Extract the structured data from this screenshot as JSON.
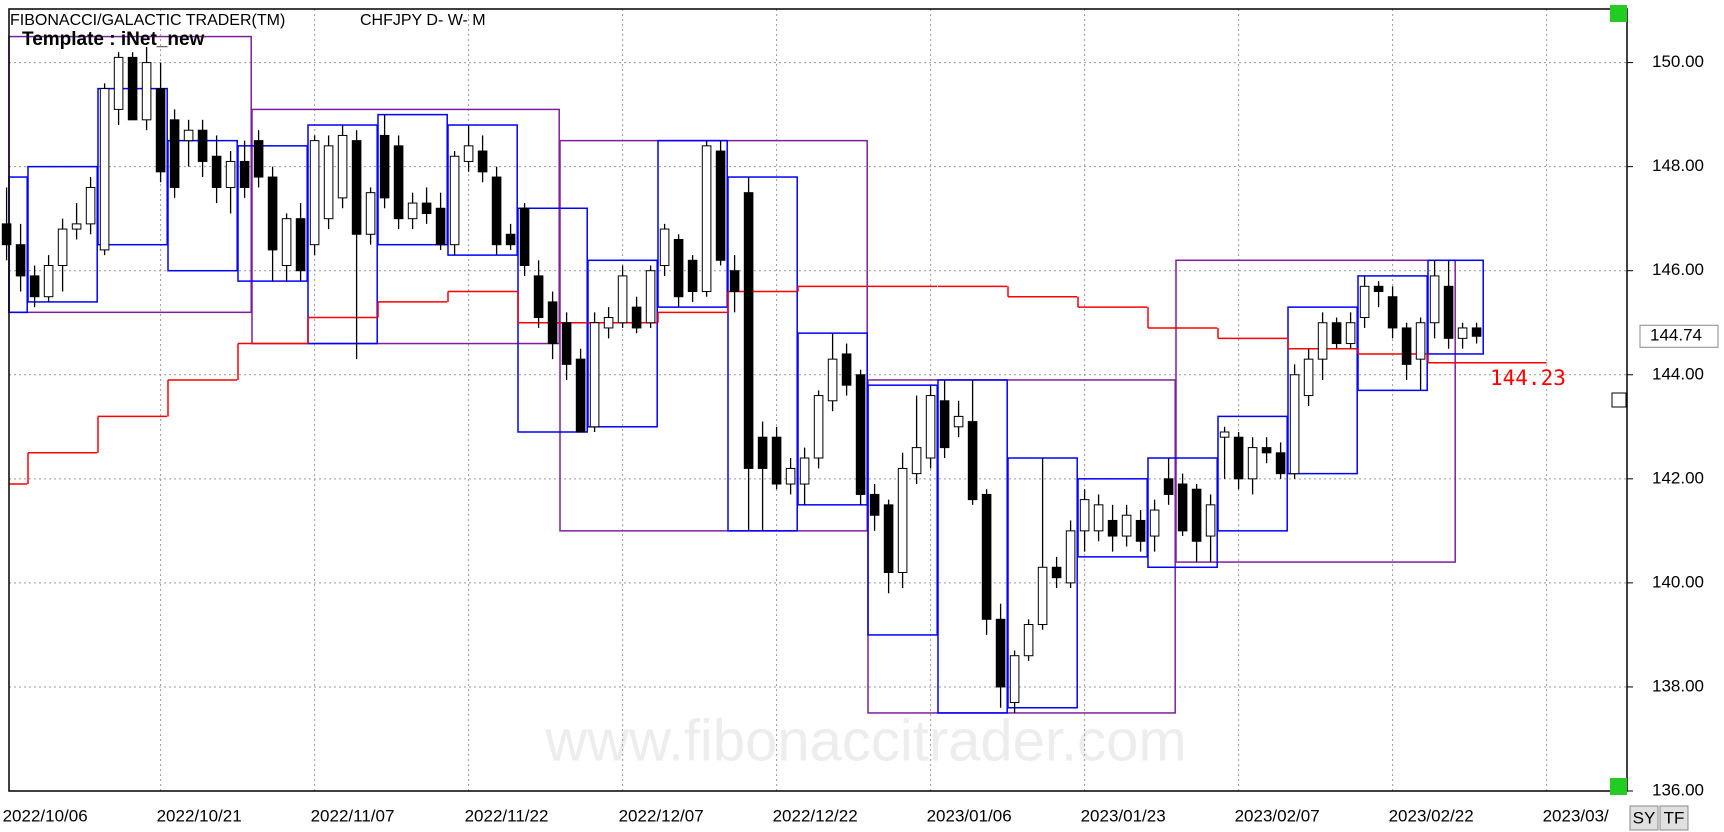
{
  "chart_data": {
    "type": "candlestick",
    "title": "FIBONACCI/GALACTIC TRADER(TM)",
    "subtitle": "CHFJPY D- W- M",
    "template": "Template : iNet_new",
    "watermark": "www.fibonaccitrader.com",
    "buttons": [
      "SY",
      "TF"
    ],
    "categories": [
      "2022/10/06",
      null,
      null,
      null,
      null,
      null,
      null,
      null,
      null,
      null,
      null,
      "2022/10/21",
      null,
      null,
      null,
      null,
      null,
      null,
      null,
      null,
      null,
      null,
      "2022/11/07",
      null,
      null,
      null,
      null,
      null,
      null,
      null,
      null,
      null,
      null,
      "2022/11/22",
      null,
      null,
      null,
      null,
      null,
      null,
      null,
      null,
      null,
      null,
      "2022/12/07",
      null,
      null,
      null,
      null,
      null,
      null,
      null,
      null,
      null,
      null,
      "2022/12/22",
      null,
      null,
      null,
      null,
      null,
      null,
      null,
      null,
      null,
      null,
      "2023/01/06",
      null,
      null,
      null,
      null,
      null,
      null,
      null,
      null,
      null,
      null,
      "2023/01/23",
      null,
      null,
      null,
      null,
      null,
      null,
      null,
      null,
      null,
      null,
      "2023/02/07",
      null,
      null,
      null,
      null,
      null,
      null,
      null,
      null,
      null,
      null,
      "2023/02/22",
      null,
      null,
      null,
      null,
      null,
      null,
      null,
      null,
      null,
      null,
      "2023/03/"
    ],
    "candles": [
      [
        146.9,
        147.6,
        146.2,
        146.5
      ],
      [
        146.5,
        146.9,
        145.6,
        145.9
      ],
      [
        145.9,
        146.1,
        145.3,
        145.5
      ],
      [
        145.5,
        146.3,
        145.4,
        146.1
      ],
      [
        146.1,
        147.0,
        145.6,
        146.8
      ],
      [
        146.8,
        147.3,
        146.6,
        146.9
      ],
      [
        146.9,
        147.8,
        146.7,
        147.6
      ],
      [
        146.4,
        149.6,
        146.3,
        149.5
      ],
      [
        149.1,
        150.2,
        148.8,
        150.1
      ],
      [
        150.1,
        150.2,
        148.9,
        148.9
      ],
      [
        148.9,
        150.3,
        148.7,
        150.0
      ],
      [
        149.5,
        150.0,
        147.7,
        147.9
      ],
      [
        148.9,
        149.1,
        147.4,
        147.6
      ],
      [
        148.5,
        148.9,
        148.0,
        148.7
      ],
      [
        148.7,
        148.9,
        147.8,
        148.1
      ],
      [
        148.2,
        148.6,
        147.3,
        147.6
      ],
      [
        147.6,
        148.3,
        147.1,
        148.1
      ],
      [
        148.1,
        148.5,
        147.4,
        147.6
      ],
      [
        148.5,
        148.7,
        147.6,
        147.8
      ],
      [
        147.8,
        148.0,
        145.8,
        146.4
      ],
      [
        146.1,
        147.1,
        145.8,
        147.0
      ],
      [
        147.0,
        147.3,
        145.8,
        146.0
      ],
      [
        146.5,
        148.6,
        146.3,
        148.5
      ],
      [
        147.0,
        148.6,
        146.8,
        148.4
      ],
      [
        147.4,
        148.8,
        147.2,
        148.6
      ],
      [
        148.5,
        148.7,
        144.3,
        146.7
      ],
      [
        146.7,
        147.6,
        146.5,
        147.5
      ],
      [
        148.6,
        149.0,
        147.2,
        147.4
      ],
      [
        148.4,
        148.6,
        146.8,
        147.0
      ],
      [
        147.0,
        147.5,
        146.8,
        147.3
      ],
      [
        147.3,
        147.6,
        146.9,
        147.1
      ],
      [
        147.2,
        147.5,
        146.4,
        146.5
      ],
      [
        146.5,
        148.3,
        146.3,
        148.2
      ],
      [
        148.1,
        148.8,
        147.9,
        148.4
      ],
      [
        148.3,
        148.6,
        147.7,
        147.9
      ],
      [
        147.8,
        148.0,
        146.3,
        146.5
      ],
      [
        146.7,
        146.9,
        146.4,
        146.5
      ],
      [
        147.2,
        147.3,
        145.9,
        146.1
      ],
      [
        145.9,
        146.2,
        144.9,
        145.1
      ],
      [
        145.4,
        145.6,
        144.3,
        144.6
      ],
      [
        145.0,
        145.2,
        143.9,
        144.2
      ],
      [
        144.3,
        144.5,
        142.9,
        142.9
      ],
      [
        143.0,
        145.2,
        142.9,
        145.0
      ],
      [
        144.9,
        145.3,
        144.7,
        145.1
      ],
      [
        145.0,
        146.1,
        144.9,
        145.9
      ],
      [
        145.3,
        145.5,
        144.8,
        144.9
      ],
      [
        145.0,
        146.1,
        144.9,
        146.0
      ],
      [
        146.1,
        146.9,
        145.9,
        146.8
      ],
      [
        146.6,
        146.7,
        145.3,
        145.5
      ],
      [
        146.2,
        146.3,
        145.4,
        145.6
      ],
      [
        145.6,
        148.5,
        145.5,
        148.4
      ],
      [
        148.3,
        148.5,
        146.1,
        146.2
      ],
      [
        146.0,
        146.3,
        145.2,
        145.6
      ],
      [
        147.5,
        147.8,
        141.0,
        142.2
      ],
      [
        142.8,
        143.1,
        141.0,
        142.2
      ],
      [
        142.8,
        143.0,
        141.8,
        141.9
      ],
      [
        141.9,
        142.4,
        141.7,
        142.2
      ],
      [
        141.9,
        142.6,
        141.5,
        142.4
      ],
      [
        142.4,
        143.7,
        142.2,
        143.6
      ],
      [
        143.5,
        144.8,
        143.3,
        144.3
      ],
      [
        144.4,
        144.6,
        143.6,
        143.8
      ],
      [
        144.0,
        144.1,
        141.5,
        141.7
      ],
      [
        141.7,
        141.9,
        141.0,
        141.3
      ],
      [
        141.5,
        141.6,
        139.8,
        140.2
      ],
      [
        140.2,
        142.5,
        139.9,
        142.2
      ],
      [
        142.1,
        143.6,
        141.9,
        142.6
      ],
      [
        142.4,
        143.8,
        142.2,
        143.6
      ],
      [
        143.5,
        143.9,
        142.4,
        142.6
      ],
      [
        143.0,
        143.5,
        142.8,
        143.2
      ],
      [
        143.1,
        143.9,
        141.5,
        141.6
      ],
      [
        141.7,
        141.8,
        139.0,
        139.3
      ],
      [
        139.3,
        139.6,
        137.6,
        138.0
      ],
      [
        137.7,
        138.7,
        137.5,
        138.6
      ],
      [
        138.6,
        139.3,
        138.5,
        139.2
      ],
      [
        139.2,
        142.4,
        139.1,
        140.3
      ],
      [
        140.3,
        140.5,
        139.9,
        140.1
      ],
      [
        140.0,
        141.2,
        139.9,
        141.0
      ],
      [
        141.0,
        141.8,
        140.6,
        141.6
      ],
      [
        141.0,
        141.7,
        140.8,
        141.5
      ],
      [
        141.2,
        141.5,
        140.6,
        140.9
      ],
      [
        140.9,
        141.5,
        140.7,
        141.3
      ],
      [
        141.2,
        141.4,
        140.6,
        140.8
      ],
      [
        140.9,
        141.6,
        140.6,
        141.4
      ],
      [
        142.0,
        142.4,
        141.5,
        141.7
      ],
      [
        141.9,
        142.1,
        140.9,
        141.0
      ],
      [
        141.8,
        141.9,
        140.4,
        140.8
      ],
      [
        140.9,
        141.7,
        140.4,
        141.5
      ],
      [
        142.8,
        143.0,
        142.0,
        142.9
      ],
      [
        142.8,
        142.9,
        141.8,
        142.0
      ],
      [
        142.0,
        142.8,
        141.7,
        142.6
      ],
      [
        142.6,
        142.8,
        142.3,
        142.5
      ],
      [
        142.5,
        142.7,
        142.0,
        142.1
      ],
      [
        142.1,
        144.2,
        142.0,
        144.0
      ],
      [
        143.6,
        144.5,
        143.4,
        144.3
      ],
      [
        144.3,
        145.2,
        143.9,
        145.0
      ],
      [
        145.0,
        145.1,
        144.5,
        144.6
      ],
      [
        144.6,
        145.2,
        144.5,
        145.0
      ],
      [
        145.1,
        145.9,
        144.9,
        145.7
      ],
      [
        145.7,
        145.8,
        145.3,
        145.6
      ],
      [
        145.5,
        145.7,
        144.7,
        144.9
      ],
      [
        144.9,
        145.0,
        143.9,
        144.2
      ],
      [
        144.3,
        145.1,
        143.7,
        145.0
      ],
      [
        145.0,
        146.2,
        144.7,
        145.9
      ],
      [
        145.7,
        146.2,
        144.5,
        144.7
      ],
      [
        144.7,
        145.0,
        144.5,
        144.9
      ],
      [
        144.9,
        145.0,
        144.6,
        144.74
      ],
      null,
      null,
      null,
      null,
      null
    ],
    "weekly": [
      [
        0,
        1,
        147.8,
        145.2,
        141.9
      ],
      [
        2,
        6,
        148.0,
        145.4,
        142.5
      ],
      [
        7,
        11,
        149.5,
        146.5,
        143.2
      ],
      [
        12,
        16,
        148.5,
        146.0,
        143.9
      ],
      [
        17,
        21,
        148.4,
        145.8,
        144.6
      ],
      [
        22,
        26,
        148.8,
        144.6,
        145.1
      ],
      [
        27,
        31,
        149.0,
        146.5,
        145.4
      ],
      [
        32,
        36,
        148.8,
        146.3,
        145.6
      ],
      [
        37,
        41,
        147.2,
        142.9,
        145.0
      ],
      [
        42,
        46,
        146.2,
        143.0,
        145.0
      ],
      [
        47,
        51,
        148.5,
        145.3,
        145.2
      ],
      [
        52,
        56,
        147.8,
        141.0,
        145.6
      ],
      [
        57,
        61,
        144.8,
        141.5,
        145.7
      ],
      [
        62,
        66,
        143.8,
        139.0,
        145.7
      ],
      [
        67,
        71,
        143.9,
        137.5,
        145.7
      ],
      [
        72,
        76,
        142.4,
        137.6,
        145.5
      ],
      [
        77,
        81,
        142.0,
        140.5,
        145.3
      ],
      [
        82,
        86,
        142.4,
        140.3,
        144.9
      ],
      [
        87,
        91,
        143.2,
        141.0,
        144.7
      ],
      [
        92,
        96,
        145.3,
        142.1,
        144.5
      ],
      [
        97,
        101,
        145.9,
        143.7,
        144.4
      ],
      [
        102,
        105,
        146.2,
        144.4,
        144.23
      ]
    ],
    "monthly": [
      [
        0,
        17,
        150.5,
        145.2
      ],
      [
        18,
        39,
        149.1,
        144.6
      ],
      [
        40,
        61,
        148.5,
        141.0
      ],
      [
        62,
        83,
        143.9,
        137.5
      ],
      [
        84,
        103,
        146.2,
        140.4
      ]
    ],
    "ylim": [
      136,
      151.03
    ],
    "yticks": [
      {
        "value": 136,
        "label": "136.00"
      },
      {
        "value": 138,
        "label": "138.00"
      },
      {
        "value": 140,
        "label": "140.00"
      },
      {
        "value": 142,
        "label": "142.00"
      },
      {
        "value": 144,
        "label": "144.00"
      },
      {
        "value": 146,
        "label": "146.00"
      },
      {
        "value": 148,
        "label": "148.00"
      },
      {
        "value": 150,
        "label": "150.00"
      }
    ],
    "grid": true,
    "colors": {
      "up": "#ffffff",
      "down": "#000000",
      "weekly": "#0000ff",
      "monthly": "#7f1f9f",
      "pivot": "#ff0000"
    }
  }
}
